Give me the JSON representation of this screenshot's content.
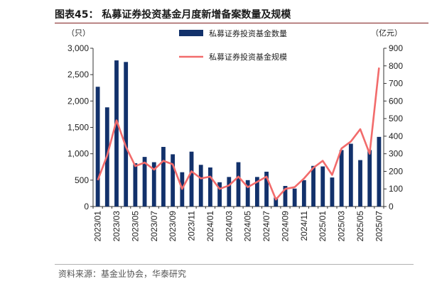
{
  "figure": {
    "title": "图表45：  私募证券投资基金月度新增备案数量及规模",
    "source": "资料来源：基金业协会，华泰研究"
  },
  "colors": {
    "bar": "#12316b",
    "line": "#f26b6b",
    "title_rule": "#7f1d1d"
  },
  "chart_data": {
    "type": "bar+line",
    "left_unit": "（只）",
    "right_unit": "（亿元）",
    "x": [
      "2023/01",
      "2023/02",
      "2023/03",
      "2023/04",
      "2023/05",
      "2023/06",
      "2023/07",
      "2023/08",
      "2023/09",
      "2023/10",
      "2023/11",
      "2023/12",
      "2024/01",
      "2024/02",
      "2024/03",
      "2024/04",
      "2024/05",
      "2024/06",
      "2024/07",
      "2024/08",
      "2024/09",
      "2024/10",
      "2024/11",
      "2024/12",
      "2025/01",
      "2025/02",
      "2025/03",
      "2025/04",
      "2025/05",
      "2025/06",
      "2025/07"
    ],
    "x_tick_labels": [
      "2023/01",
      "2023/03",
      "2023/05",
      "2023/07",
      "2023/09",
      "2023/11",
      "2024/01",
      "2024/03",
      "2024/05",
      "2024/07",
      "2024/09",
      "2024/11",
      "2025/01",
      "2025/03",
      "2025/05",
      "2025/07"
    ],
    "left_axis": {
      "min": 0,
      "max": 3000,
      "ticks": [
        "0",
        "500",
        "1,000",
        "1,500",
        "2,000",
        "2,500",
        "3,000"
      ]
    },
    "right_axis": {
      "min": 0,
      "max": 900,
      "ticks": [
        "0",
        "100",
        "200",
        "300",
        "400",
        "500",
        "600",
        "700",
        "800",
        "900"
      ]
    },
    "series": [
      {
        "name": "私募证券投资基金数量",
        "type": "bar",
        "axis": "left",
        "values": [
          2270,
          1880,
          2770,
          2740,
          820,
          940,
          840,
          1130,
          990,
          650,
          1040,
          790,
          740,
          460,
          560,
          840,
          500,
          560,
          660,
          170,
          390,
          340,
          500,
          770,
          760,
          550,
          1070,
          1190,
          880,
          1070,
          1320
        ]
      },
      {
        "name": "私募证券投资基金规模",
        "type": "line",
        "axis": "right",
        "values": [
          150,
          290,
          490,
          340,
          230,
          250,
          210,
          260,
          240,
          100,
          200,
          160,
          170,
          100,
          120,
          170,
          110,
          140,
          170,
          40,
          100,
          110,
          160,
          220,
          260,
          180,
          330,
          370,
          440,
          300,
          790
        ]
      }
    ],
    "grid": false,
    "legend_position": "top-center"
  }
}
